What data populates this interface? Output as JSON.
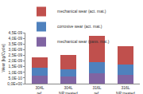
{
  "chart_data": {
    "type": "bar",
    "stacked": true,
    "y_label": "Wear [kg/Cycle]",
    "categories": [
      "304L ref.",
      "304L NP treated",
      "316L ref.",
      "316L NP treated"
    ],
    "series": [
      {
        "name": "mechanical wear (pass. mat.)",
        "color": "#8064A2",
        "values": [
          7e-10,
          6e-10,
          9e-10,
          8e-10
        ]
      },
      {
        "name": "corrosive wear (act. mat.)",
        "color": "#4F81BD",
        "values": [
          7e-10,
          7e-10,
          1e-09,
          9e-10
        ]
      },
      {
        "name": "mechanical wear (act. mat.)",
        "color": "#C0504D",
        "values": [
          9e-10,
          1.2e-09,
          2.3e-09,
          1.6e-09
        ]
      }
    ],
    "ylim": [
      0,
      4.5e-09
    ],
    "yticks": [
      {
        "value": 0,
        "label": "0,0E+00"
      },
      {
        "value": 5e-10,
        "label": "5,0E-10"
      },
      {
        "value": 1e-09,
        "label": "1,0E-09"
      },
      {
        "value": 1.5e-09,
        "label": "1,5E-09"
      },
      {
        "value": 2e-09,
        "label": "2,0E-09"
      },
      {
        "value": 2.5e-09,
        "label": "2,5E-09"
      },
      {
        "value": 3e-09,
        "label": "3,0E-09"
      },
      {
        "value": 3.5e-09,
        "label": "3,5E-09"
      },
      {
        "value": 4e-09,
        "label": "4,0E-09"
      },
      {
        "value": 4.5e-09,
        "label": "4,5E-09"
      }
    ],
    "grid": false,
    "legend": "top-left"
  }
}
